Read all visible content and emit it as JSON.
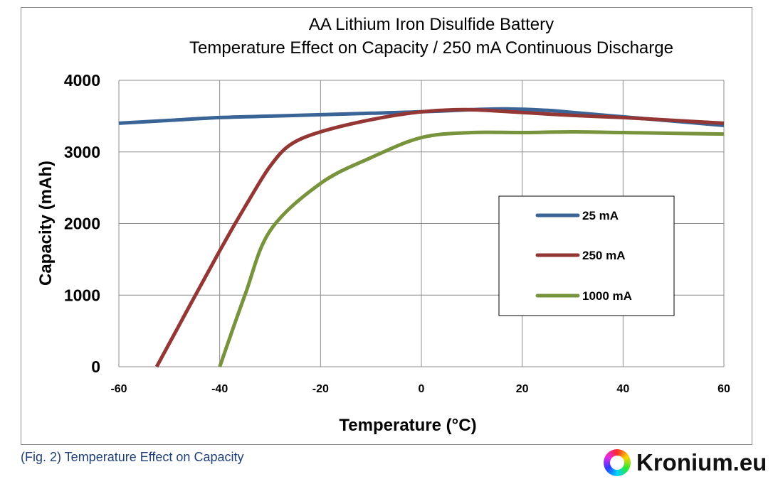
{
  "chart_data": {
    "type": "line",
    "title": "AA Lithium Iron Disulfide Battery",
    "subtitle": "Temperature Effect on Capacity / 250 mA Continuous Discharge",
    "xlabel": "Temperature (°C)",
    "ylabel": "Capacity (mAh)",
    "xlim": [
      -60,
      60
    ],
    "ylim": [
      0,
      4000
    ],
    "x_ticks": [
      "-60",
      "-40",
      "-20",
      "0",
      "20",
      "40",
      "60"
    ],
    "y_ticks": [
      "0",
      "1000",
      "2000",
      "3000",
      "4000"
    ],
    "grid": true,
    "legend_position": "right",
    "series": [
      {
        "name": "25 mA",
        "color": "#3b6496",
        "points": [
          [
            -60,
            3400
          ],
          [
            -50,
            3440
          ],
          [
            -40,
            3480
          ],
          [
            -30,
            3500
          ],
          [
            -20,
            3520
          ],
          [
            -10,
            3540
          ],
          [
            0,
            3560
          ],
          [
            10,
            3590
          ],
          [
            17,
            3600
          ],
          [
            25,
            3580
          ],
          [
            30,
            3550
          ],
          [
            40,
            3490
          ],
          [
            50,
            3430
          ],
          [
            60,
            3370
          ]
        ]
      },
      {
        "name": "250 mA",
        "color": "#943634",
        "points": [
          [
            -52.5,
            0
          ],
          [
            -40,
            1620
          ],
          [
            -34,
            2350
          ],
          [
            -30,
            2800
          ],
          [
            -26,
            3100
          ],
          [
            -20,
            3280
          ],
          [
            -10,
            3450
          ],
          [
            0,
            3560
          ],
          [
            9,
            3590
          ],
          [
            20,
            3550
          ],
          [
            30,
            3510
          ],
          [
            40,
            3480
          ],
          [
            50,
            3440
          ],
          [
            60,
            3400
          ]
        ]
      },
      {
        "name": "1000 mA",
        "color": "#77933c",
        "points": [
          [
            -40,
            0
          ],
          [
            -35,
            1000
          ],
          [
            -30,
            1900
          ],
          [
            -20,
            2560
          ],
          [
            -10,
            2920
          ],
          [
            0,
            3200
          ],
          [
            10,
            3270
          ],
          [
            20,
            3270
          ],
          [
            30,
            3280
          ],
          [
            40,
            3270
          ],
          [
            50,
            3260
          ],
          [
            60,
            3250
          ]
        ]
      }
    ]
  },
  "caption": "(Fig. 2) Temperature Effect on Capacity",
  "brand": {
    "name": "Kronium.eu"
  }
}
